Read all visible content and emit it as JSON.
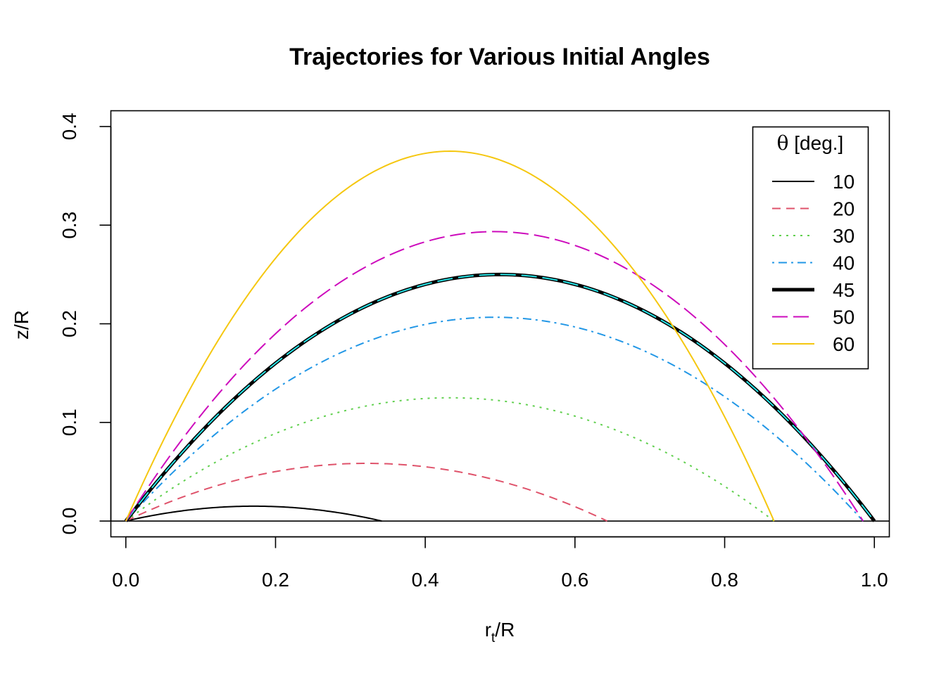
{
  "chart_data": {
    "type": "line",
    "title": "Trajectories for Various Initial Angles",
    "xlabel": {
      "base": "r",
      "sub": "t",
      "rest": "/R"
    },
    "ylabel": "z/R",
    "xlim": [
      -0.02,
      1.02
    ],
    "ylim": [
      -0.016,
      0.416
    ],
    "x_ticks": [
      0.0,
      0.2,
      0.4,
      0.6,
      0.8,
      1.0
    ],
    "x_tick_labels": [
      "0.0",
      "0.2",
      "0.4",
      "0.6",
      "0.8",
      "1.0"
    ],
    "y_ticks": [
      0.0,
      0.1,
      0.2,
      0.3,
      0.4
    ],
    "y_tick_labels": [
      "0.0",
      "0.1",
      "0.2",
      "0.3",
      "0.4"
    ],
    "zero_line": 0.0,
    "grid": false,
    "legend": {
      "title_symbol": "θ",
      "title_text": " [deg.]",
      "placement": "top-right"
    },
    "series": [
      {
        "name": "10",
        "angle": 10,
        "range": 0.342,
        "color": "#000000",
        "dash": "solid",
        "width": 2
      },
      {
        "name": "20",
        "angle": 20,
        "range": 0.643,
        "color": "#DF536B",
        "dash": "dashed",
        "width": 2
      },
      {
        "name": "30",
        "angle": 30,
        "range": 0.866,
        "color": "#61D04F",
        "dash": "dotted",
        "width": 2
      },
      {
        "name": "40",
        "angle": 40,
        "range": 0.985,
        "color": "#2297E6",
        "dash": "dotdash",
        "width": 2
      },
      {
        "name": "45",
        "angle": 45,
        "range": 1.0,
        "color": "#000000",
        "dash": "solid",
        "width": 5,
        "overlay_color": "#28E2E5",
        "overlay_dash": "longdash"
      },
      {
        "name": "50",
        "angle": 50,
        "range": 0.985,
        "color": "#CD0BBC",
        "dash": "longdash",
        "width": 2
      },
      {
        "name": "60",
        "angle": 60,
        "range": 0.866,
        "color": "#F5C710",
        "dash": "solid",
        "width": 2
      }
    ]
  }
}
